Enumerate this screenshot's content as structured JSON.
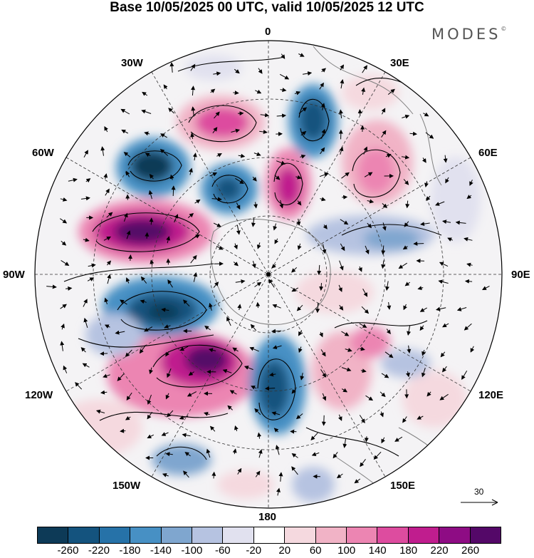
{
  "title": "Base 10/05/2025 00 UTC, valid 10/05/2025 12 UTC",
  "brand": "MODES",
  "brand_mark": "©",
  "longitude_labels": {
    "lon_0": "0",
    "lon_30e": "30E",
    "lon_60e": "60E",
    "lon_90e": "90E",
    "lon_120e": "120E",
    "lon_150e": "150E",
    "lon_180": "180",
    "lon_150w": "150W",
    "lon_120w": "120W",
    "lon_90w": "90W",
    "lon_60w": "60W",
    "lon_30w": "30W"
  },
  "reference_vector": {
    "value": "30",
    "icon": "arrow-right-icon"
  },
  "colorbar": {
    "colors": [
      "#0d3a57",
      "#14537e",
      "#2672a8",
      "#4790c4",
      "#7fa6cf",
      "#b6c3e1",
      "#e1e1ef",
      "#ffffff",
      "#f5d9df",
      "#f1b3c6",
      "#ec85b2",
      "#dd4c9f",
      "#c01d8e",
      "#8e0c84",
      "#540868"
    ],
    "tick_labels": [
      "-260",
      "-220",
      "-180",
      "-140",
      "-100",
      "-60",
      "-20",
      "20",
      "60",
      "100",
      "140",
      "180",
      "220",
      "260"
    ]
  }
}
